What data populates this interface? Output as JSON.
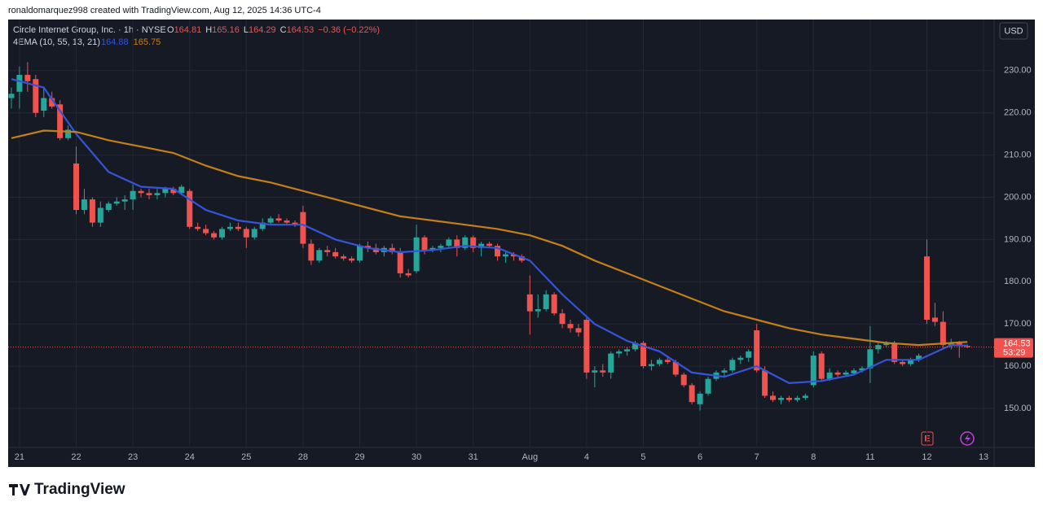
{
  "header": {
    "credit": "ronaldomarquez998 created with TradingView.com, Aug 12, 2025 14:36 UTC-4",
    "brand": "TradingView"
  },
  "chart_data": {
    "type": "candlestick",
    "symbol": "Circle Internet Group, Inc. · 1h · NYSE",
    "ohlc_prefixes": [
      "O",
      "H",
      "L",
      "C"
    ],
    "change": "−0.36 (−0.22%)",
    "indicator": "4EMA (10, 55, 13, 21)",
    "currency": "USD",
    "countdown": "53:29",
    "earnings_icon": "E",
    "up_color": "#26a69a",
    "down_color": "#ef5350",
    "xlim": [
      -0.4,
      121.3
    ],
    "xticks": [
      {
        "value": 1,
        "label": "21"
      },
      {
        "value": 8,
        "label": "22"
      },
      {
        "value": 15,
        "label": "23"
      },
      {
        "value": 22,
        "label": "24"
      },
      {
        "value": 29,
        "label": "25"
      },
      {
        "value": 36,
        "label": "28"
      },
      {
        "value": 43,
        "label": "29"
      },
      {
        "value": 50,
        "label": "30"
      },
      {
        "value": 57,
        "label": "31"
      },
      {
        "value": 64,
        "label": "Aug"
      },
      {
        "value": 71,
        "label": "4"
      },
      {
        "value": 78,
        "label": "5"
      },
      {
        "value": 85,
        "label": "6"
      },
      {
        "value": 92,
        "label": "7"
      },
      {
        "value": 99,
        "label": "8"
      },
      {
        "value": 106,
        "label": "11"
      },
      {
        "value": 113,
        "label": "12"
      },
      {
        "value": 120,
        "label": "13"
      }
    ],
    "ylim": [
      140.75,
      242.1
    ],
    "yticks": [
      {
        "value": 150,
        "label": "150.00"
      },
      {
        "value": 160,
        "label": "160.00"
      },
      {
        "value": 170,
        "label": "170.00"
      },
      {
        "value": 180,
        "label": "180.00"
      },
      {
        "value": 190,
        "label": "190.00"
      },
      {
        "value": 200,
        "label": "200.00"
      },
      {
        "value": 210,
        "label": "210.00"
      },
      {
        "value": 220,
        "label": "220.00"
      },
      {
        "value": 230,
        "label": "230.00"
      }
    ],
    "grid": true,
    "candles": [
      [
        223.5,
        226,
        221,
        224.5
      ],
      [
        225,
        231,
        221,
        229
      ],
      [
        229,
        232,
        225,
        227.5
      ],
      [
        228,
        229,
        219,
        220
      ],
      [
        220.5,
        226,
        219,
        223.5
      ],
      [
        223.5,
        225,
        221,
        221.5
      ],
      [
        222,
        223,
        213.5,
        214
      ],
      [
        214,
        217,
        213.5,
        216
      ],
      [
        208,
        212,
        196,
        197
      ],
      [
        197,
        202,
        196,
        199.5
      ],
      [
        199.5,
        200,
        193,
        194
      ],
      [
        194,
        199,
        193,
        197.5
      ],
      [
        197,
        199,
        196.5,
        198.5
      ],
      [
        198.5,
        200,
        198,
        199
      ],
      [
        199,
        200.5,
        197,
        199.5
      ],
      [
        199.5,
        203,
        197,
        201.5
      ],
      [
        201.5,
        202,
        200,
        201
      ],
      [
        201,
        202,
        199.5,
        200.5
      ],
      [
        200.5,
        202,
        199.5,
        201
      ],
      [
        201,
        202.5,
        200,
        202
      ],
      [
        202,
        202.5,
        200.5,
        201
      ],
      [
        201,
        203,
        200.5,
        202.5
      ],
      [
        201.5,
        202,
        192.5,
        193
      ],
      [
        193,
        194,
        192,
        192.5
      ],
      [
        192.5,
        193.5,
        191,
        191.5
      ],
      [
        191.5,
        192,
        190,
        190.5
      ],
      [
        190.5,
        193,
        190,
        192.5
      ],
      [
        192.5,
        194,
        192,
        193
      ],
      [
        193,
        194,
        192,
        192.5
      ],
      [
        192.5,
        193,
        188,
        190.5
      ],
      [
        190.5,
        193,
        190,
        192.5
      ],
      [
        192.5,
        195,
        192,
        194
      ],
      [
        194,
        195.5,
        193.5,
        195
      ],
      [
        195,
        196,
        194,
        194.5
      ],
      [
        194.5,
        195,
        193.5,
        194
      ],
      [
        194,
        194.5,
        193,
        193.5
      ],
      [
        196.5,
        198,
        188,
        189
      ],
      [
        189,
        190,
        184,
        185
      ],
      [
        185,
        188,
        184.5,
        187.5
      ],
      [
        187.5,
        188.5,
        186,
        187
      ],
      [
        187,
        188,
        185.5,
        186
      ],
      [
        186,
        186.5,
        185,
        185.5
      ],
      [
        185.5,
        186,
        184.5,
        185
      ],
      [
        185,
        189,
        184.5,
        188.5
      ],
      [
        188.5,
        189.5,
        187,
        188
      ],
      [
        188,
        189,
        186.5,
        187
      ],
      [
        187,
        188.5,
        186,
        188
      ],
      [
        188,
        189,
        186.5,
        187
      ],
      [
        187,
        188,
        181,
        182
      ],
      [
        182,
        183,
        181,
        181.5
      ],
      [
        182.5,
        193.5,
        182,
        190.5
      ],
      [
        190.5,
        191,
        186.5,
        187.5
      ],
      [
        187.5,
        188.5,
        187,
        188
      ],
      [
        188,
        189,
        187,
        188.5
      ],
      [
        188.5,
        190.5,
        188,
        190
      ],
      [
        190,
        191,
        186,
        188
      ],
      [
        188,
        191,
        187.5,
        190.5
      ],
      [
        190.5,
        191,
        187,
        188
      ],
      [
        188,
        189.5,
        186,
        189
      ],
      [
        189,
        189.5,
        188,
        188.5
      ],
      [
        188.5,
        189,
        185,
        186
      ],
      [
        186,
        187,
        184.5,
        186.5
      ],
      [
        186.5,
        187,
        185,
        186
      ],
      [
        186,
        186.5,
        184.5,
        185
      ],
      [
        177,
        181.5,
        167.5,
        173
      ],
      [
        173,
        177,
        171.5,
        173.5
      ],
      [
        173.5,
        178,
        173,
        177
      ],
      [
        177,
        177.5,
        172,
        172.5
      ],
      [
        172.5,
        173.5,
        169,
        170
      ],
      [
        170,
        171,
        168,
        169
      ],
      [
        169,
        170,
        167,
        168
      ],
      [
        171,
        171.5,
        157,
        158.5
      ],
      [
        158.5,
        160,
        155,
        159
      ],
      [
        159,
        160.5,
        157.5,
        158.5
      ],
      [
        158.5,
        163.5,
        157,
        163
      ],
      [
        163,
        164,
        162,
        163.5
      ],
      [
        163.5,
        164.5,
        162.5,
        164
      ],
      [
        164,
        166,
        163.5,
        165.5
      ],
      [
        165.5,
        166,
        159.5,
        160
      ],
      [
        160,
        161.5,
        159,
        160.5
      ],
      [
        160.5,
        162,
        160,
        161.5
      ],
      [
        161.5,
        162.5,
        160.5,
        161
      ],
      [
        161,
        161.5,
        157.5,
        158
      ],
      [
        158,
        158.5,
        155,
        155.5
      ],
      [
        155.5,
        156,
        151,
        151.5
      ],
      [
        151,
        154,
        149.5,
        153.5
      ],
      [
        153.5,
        157.5,
        153,
        157
      ],
      [
        157,
        159,
        156.5,
        158.5
      ],
      [
        158.5,
        159.5,
        157.5,
        159
      ],
      [
        159,
        162,
        158.5,
        161.5
      ],
      [
        161.5,
        162.5,
        160.5,
        162
      ],
      [
        162,
        164,
        161,
        163.5
      ],
      [
        168.5,
        170,
        158.5,
        159
      ],
      [
        159,
        160,
        152.5,
        153
      ],
      [
        153,
        154,
        151.5,
        152
      ],
      [
        152,
        153,
        151,
        152.5
      ],
      [
        152.5,
        153,
        151.5,
        152
      ],
      [
        152,
        153,
        151.5,
        152.5
      ],
      [
        152.5,
        153.5,
        152,
        153
      ],
      [
        155.5,
        163.5,
        155,
        162.5
      ],
      [
        163,
        163.5,
        156.5,
        157
      ],
      [
        157,
        159.5,
        156.5,
        158.5
      ],
      [
        158.5,
        159,
        157.5,
        158
      ],
      [
        158,
        159,
        157.5,
        158.5
      ],
      [
        158.3,
        159.5,
        158,
        159
      ],
      [
        159,
        160,
        158.5,
        159.5
      ],
      [
        159.5,
        169.5,
        156,
        164
      ],
      [
        164,
        166,
        163,
        165
      ],
      [
        165,
        166,
        164.5,
        165.5
      ],
      [
        165.5,
        166,
        160.5,
        161
      ],
      [
        161,
        161.5,
        160,
        160.5
      ],
      [
        160.5,
        162,
        160,
        161.5
      ],
      [
        161.5,
        163,
        161,
        162.5
      ],
      [
        186,
        190,
        170,
        171
      ],
      [
        171.5,
        175,
        169.5,
        170.5
      ],
      [
        170.5,
        173,
        164,
        165
      ],
      [
        165,
        166.5,
        164,
        165.5
      ],
      [
        165.5,
        166,
        162,
        165
      ],
      [
        164.81,
        165.16,
        164.29,
        164.53
      ]
    ],
    "series": [
      {
        "color": "#3455db",
        "x": [
          0,
          4,
          8,
          12,
          16,
          20,
          24,
          28,
          32,
          36,
          40,
          44,
          48,
          52,
          56,
          60,
          64,
          68,
          72,
          76,
          80,
          84,
          88,
          92,
          96,
          100,
          104,
          108,
          112,
          116,
          118
        ],
        "values": [
          228,
          226,
          215,
          206,
          202.5,
          202,
          197,
          194.5,
          193.5,
          193.5,
          190,
          188,
          187,
          187.5,
          188.5,
          188,
          185,
          177,
          170,
          166,
          163.5,
          158.5,
          157.5,
          160,
          156,
          156.5,
          158,
          161.5,
          161.5,
          165,
          164.88
        ]
      },
      {
        "color": "#c47f17",
        "x": [
          0,
          4,
          8,
          12,
          16,
          20,
          24,
          28,
          32,
          36,
          40,
          44,
          48,
          52,
          56,
          60,
          64,
          68,
          72,
          76,
          80,
          84,
          88,
          92,
          96,
          100,
          104,
          108,
          112,
          116,
          118
        ],
        "values": [
          214,
          215.8,
          215.5,
          213.5,
          212,
          210.5,
          207.5,
          205,
          203.5,
          201.5,
          199.5,
          197.5,
          195.5,
          194.5,
          193.5,
          192.5,
          191,
          188.5,
          185,
          182,
          179,
          176,
          173,
          171,
          169,
          167.5,
          166.5,
          165.5,
          165,
          165.5,
          165.75
        ]
      }
    ]
  }
}
